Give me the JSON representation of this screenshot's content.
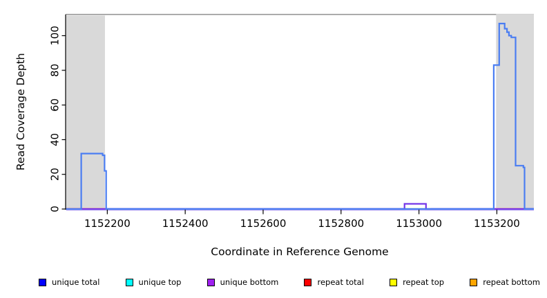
{
  "chart_data": {
    "type": "line",
    "title": "",
    "xlabel": "Coordinate in Reference Genome",
    "ylabel": "Read Coverage Depth",
    "xlim": [
      1152093,
      1153295
    ],
    "ylim": [
      0,
      112.2
    ],
    "x_ticks": [
      1152200,
      1152400,
      1152600,
      1152800,
      1153000,
      1153200
    ],
    "y_ticks": [
      0,
      20,
      40,
      60,
      80,
      100
    ],
    "grid": false,
    "legend_position": "bottom",
    "plot_border_top_color": "#8f8f8f",
    "shaded_region_color": "#d9d9d9",
    "shaded_regions": [
      {
        "x0": 1152093,
        "x1": 1152194
      },
      {
        "x0": 1153198,
        "x1": 1153295
      }
    ],
    "series": [
      {
        "name": "unique total",
        "color": "#0000ff",
        "draw_color": "#4a7df2",
        "steps": [
          [
            1152093,
            0
          ],
          [
            1152133,
            32
          ],
          [
            1152188,
            31
          ],
          [
            1152193,
            22
          ],
          [
            1152197,
            0
          ],
          [
            1153192,
            83
          ],
          [
            1153206,
            107
          ],
          [
            1153220,
            104
          ],
          [
            1153226,
            102
          ],
          [
            1153231,
            100
          ],
          [
            1153237,
            99
          ],
          [
            1153248,
            25
          ],
          [
            1153268,
            24
          ],
          [
            1153271,
            0
          ],
          [
            1153295,
            0
          ]
        ]
      },
      {
        "name": "unique top",
        "color": "#00ffff",
        "steps": [
          [
            1152093,
            0
          ],
          [
            1153295,
            0
          ]
        ]
      },
      {
        "name": "unique bottom",
        "color": "#a020f0",
        "draw_color": "#7436e8",
        "steps": [
          [
            1152093,
            0
          ],
          [
            1152963,
            3
          ],
          [
            1153018,
            0
          ],
          [
            1153295,
            0
          ]
        ]
      },
      {
        "name": "repeat total",
        "color": "#ff0000",
        "steps": [
          [
            1152093,
            0
          ],
          [
            1153295,
            0
          ]
        ]
      },
      {
        "name": "repeat top",
        "color": "#ffff00",
        "steps": [
          [
            1152093,
            0
          ],
          [
            1153295,
            0
          ]
        ]
      },
      {
        "name": "repeat bottom",
        "color": "#ffa500",
        "steps": [
          [
            1152093,
            0
          ],
          [
            1153295,
            0
          ]
        ]
      }
    ],
    "baseline_underline_color": "#c2b3f5",
    "baseline_segments": [
      {
        "x0": 1152095,
        "x1": 1152197,
        "color": "#ff4040"
      },
      {
        "x0": 1152197,
        "x1": 1152960,
        "color": "#4848e0"
      },
      {
        "x0": 1152960,
        "x1": 1153030,
        "color": "#82d882"
      },
      {
        "x0": 1153030,
        "x1": 1153193,
        "color": "#4848e0"
      },
      {
        "x0": 1153193,
        "x1": 1153268,
        "color": "#ff4040"
      },
      {
        "x0": 1153268,
        "x1": 1153295,
        "color": "#4848e0"
      }
    ]
  },
  "legend": {
    "items": [
      {
        "label": "unique total",
        "color": "#0000ff"
      },
      {
        "label": "unique top",
        "color": "#00ffff"
      },
      {
        "label": "unique bottom",
        "color": "#a020f0"
      },
      {
        "label": "repeat total",
        "color": "#ff0000"
      },
      {
        "label": "repeat top",
        "color": "#ffff00"
      },
      {
        "label": "repeat bottom",
        "color": "#ffa500"
      }
    ]
  }
}
